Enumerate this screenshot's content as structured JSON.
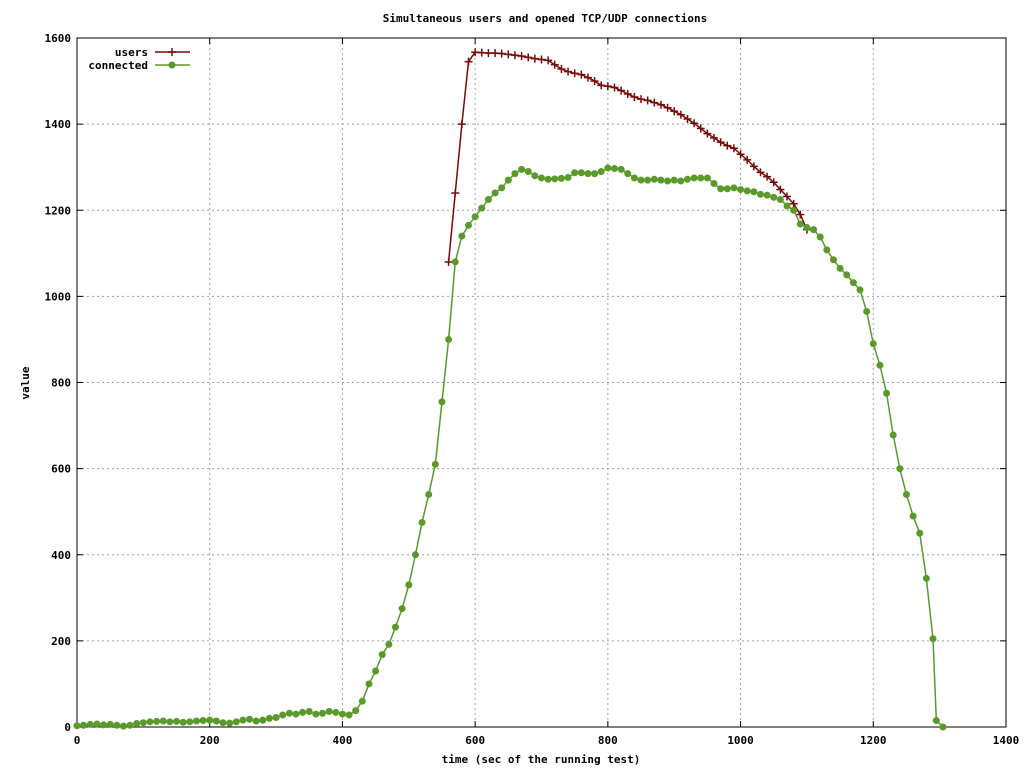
{
  "chart_data": {
    "type": "line",
    "title": "Simultaneous users and opened TCP/UDP connections",
    "xlabel": "time (sec of the running test)",
    "ylabel": "value",
    "xlim": [
      0,
      1400
    ],
    "ylim": [
      0,
      1600
    ],
    "xticks": [
      0,
      200,
      400,
      600,
      800,
      1000,
      1200,
      1400
    ],
    "yticks": [
      0,
      200,
      400,
      600,
      800,
      1000,
      1200,
      1400,
      1600
    ],
    "grid": true,
    "legend_position": "top-left",
    "series": [
      {
        "name": "users",
        "color": "#7a0a0a",
        "marker": "plus",
        "points": [
          [
            560,
            1080
          ],
          [
            570,
            1240
          ],
          [
            580,
            1400
          ],
          [
            590,
            1545
          ],
          [
            600,
            1567
          ],
          [
            610,
            1566
          ],
          [
            620,
            1565
          ],
          [
            630,
            1565
          ],
          [
            640,
            1564
          ],
          [
            650,
            1562
          ],
          [
            660,
            1560
          ],
          [
            670,
            1558
          ],
          [
            680,
            1555
          ],
          [
            690,
            1552
          ],
          [
            700,
            1550
          ],
          [
            710,
            1548
          ],
          [
            720,
            1538
          ],
          [
            730,
            1528
          ],
          [
            740,
            1522
          ],
          [
            750,
            1518
          ],
          [
            760,
            1515
          ],
          [
            770,
            1508
          ],
          [
            780,
            1500
          ],
          [
            790,
            1490
          ],
          [
            800,
            1488
          ],
          [
            810,
            1485
          ],
          [
            820,
            1478
          ],
          [
            830,
            1470
          ],
          [
            840,
            1463
          ],
          [
            850,
            1458
          ],
          [
            860,
            1455
          ],
          [
            870,
            1450
          ],
          [
            880,
            1445
          ],
          [
            890,
            1438
          ],
          [
            900,
            1430
          ],
          [
            910,
            1422
          ],
          [
            920,
            1412
          ],
          [
            930,
            1402
          ],
          [
            940,
            1390
          ],
          [
            950,
            1378
          ],
          [
            960,
            1368
          ],
          [
            970,
            1358
          ],
          [
            980,
            1350
          ],
          [
            990,
            1344
          ],
          [
            1000,
            1330
          ],
          [
            1010,
            1317
          ],
          [
            1020,
            1302
          ],
          [
            1030,
            1288
          ],
          [
            1040,
            1278
          ],
          [
            1050,
            1265
          ],
          [
            1060,
            1248
          ],
          [
            1070,
            1232
          ],
          [
            1080,
            1215
          ],
          [
            1090,
            1190
          ],
          [
            1100,
            1155
          ]
        ]
      },
      {
        "name": "connected",
        "color": "#5a9a2a",
        "marker": "filled-circle",
        "points": [
          [
            0,
            3
          ],
          [
            10,
            4
          ],
          [
            20,
            6
          ],
          [
            30,
            7
          ],
          [
            40,
            5
          ],
          [
            50,
            6
          ],
          [
            60,
            4
          ],
          [
            70,
            2
          ],
          [
            80,
            4
          ],
          [
            90,
            8
          ],
          [
            100,
            10
          ],
          [
            110,
            12
          ],
          [
            120,
            13
          ],
          [
            130,
            14
          ],
          [
            140,
            12
          ],
          [
            150,
            13
          ],
          [
            160,
            11
          ],
          [
            170,
            12
          ],
          [
            180,
            14
          ],
          [
            190,
            15
          ],
          [
            200,
            16
          ],
          [
            210,
            14
          ],
          [
            220,
            10
          ],
          [
            230,
            9
          ],
          [
            240,
            12
          ],
          [
            250,
            16
          ],
          [
            260,
            18
          ],
          [
            270,
            14
          ],
          [
            280,
            16
          ],
          [
            290,
            20
          ],
          [
            300,
            22
          ],
          [
            310,
            28
          ],
          [
            320,
            32
          ],
          [
            330,
            30
          ],
          [
            340,
            34
          ],
          [
            350,
            36
          ],
          [
            360,
            30
          ],
          [
            370,
            32
          ],
          [
            380,
            36
          ],
          [
            390,
            34
          ],
          [
            400,
            30
          ],
          [
            410,
            28
          ],
          [
            420,
            38
          ],
          [
            430,
            60
          ],
          [
            440,
            100
          ],
          [
            450,
            130
          ],
          [
            460,
            168
          ],
          [
            470,
            192
          ],
          [
            480,
            232
          ],
          [
            490,
            275
          ],
          [
            500,
            330
          ],
          [
            510,
            400
          ],
          [
            520,
            475
          ],
          [
            530,
            540
          ],
          [
            540,
            610
          ],
          [
            550,
            755
          ],
          [
            560,
            900
          ],
          [
            570,
            1080
          ],
          [
            580,
            1140
          ],
          [
            590,
            1165
          ],
          [
            600,
            1185
          ],
          [
            610,
            1205
          ],
          [
            620,
            1225
          ],
          [
            630,
            1240
          ],
          [
            640,
            1252
          ],
          [
            650,
            1270
          ],
          [
            660,
            1285
          ],
          [
            670,
            1295
          ],
          [
            680,
            1290
          ],
          [
            690,
            1280
          ],
          [
            700,
            1275
          ],
          [
            710,
            1272
          ],
          [
            720,
            1273
          ],
          [
            730,
            1274
          ],
          [
            740,
            1276
          ],
          [
            750,
            1287
          ],
          [
            760,
            1287
          ],
          [
            770,
            1285
          ],
          [
            780,
            1285
          ],
          [
            790,
            1290
          ],
          [
            800,
            1298
          ],
          [
            810,
            1297
          ],
          [
            820,
            1295
          ],
          [
            830,
            1285
          ],
          [
            840,
            1275
          ],
          [
            850,
            1270
          ],
          [
            860,
            1270
          ],
          [
            870,
            1272
          ],
          [
            880,
            1270
          ],
          [
            890,
            1268
          ],
          [
            900,
            1270
          ],
          [
            910,
            1268
          ],
          [
            920,
            1272
          ],
          [
            930,
            1275
          ],
          [
            940,
            1275
          ],
          [
            950,
            1275
          ],
          [
            960,
            1262
          ],
          [
            970,
            1250
          ],
          [
            980,
            1250
          ],
          [
            990,
            1252
          ],
          [
            1000,
            1248
          ],
          [
            1010,
            1245
          ],
          [
            1020,
            1243
          ],
          [
            1030,
            1237
          ],
          [
            1040,
            1235
          ],
          [
            1050,
            1230
          ],
          [
            1060,
            1225
          ],
          [
            1070,
            1210
          ],
          [
            1080,
            1200
          ],
          [
            1090,
            1168
          ],
          [
            1100,
            1160
          ],
          [
            1110,
            1155
          ],
          [
            1120,
            1138
          ],
          [
            1130,
            1108
          ],
          [
            1140,
            1085
          ],
          [
            1150,
            1065
          ],
          [
            1160,
            1050
          ],
          [
            1170,
            1032
          ],
          [
            1180,
            1015
          ],
          [
            1190,
            965
          ],
          [
            1200,
            890
          ],
          [
            1210,
            840
          ],
          [
            1220,
            775
          ],
          [
            1230,
            678
          ],
          [
            1240,
            600
          ],
          [
            1250,
            540
          ],
          [
            1260,
            490
          ],
          [
            1270,
            450
          ],
          [
            1280,
            345
          ],
          [
            1290,
            205
          ],
          [
            1295,
            15
          ],
          [
            1305,
            0
          ]
        ]
      }
    ]
  }
}
